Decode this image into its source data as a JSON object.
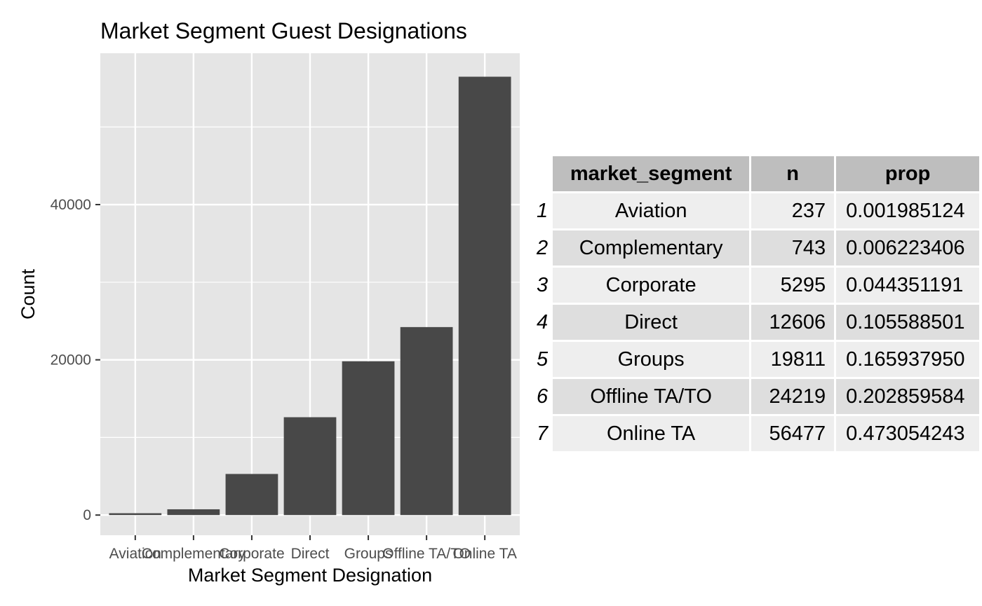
{
  "chart_data": {
    "type": "bar",
    "title": "Market Segment Guest Designations",
    "xlabel": "Market Segment Designation",
    "ylabel": "Count",
    "categories": [
      "Aviation",
      "Complementary",
      "Corporate",
      "Direct",
      "Groups",
      "Offline TA/TO",
      "Online TA"
    ],
    "values": [
      237,
      743,
      5295,
      12606,
      19811,
      24219,
      56477
    ],
    "ylim": [
      -2600,
      59500
    ],
    "yticks": [
      0,
      20000,
      40000
    ],
    "ytick_labels": [
      "0",
      "20000",
      "40000"
    ],
    "grid": true,
    "colors": {
      "bar": "#484848",
      "panel": "#e5e5e5",
      "grid": "#ffffff"
    }
  },
  "table": {
    "headers": [
      "market_segment",
      "n",
      "prop"
    ],
    "rows": [
      {
        "id": "1",
        "segment": "Aviation",
        "n": "237",
        "prop": "0.001985124"
      },
      {
        "id": "2",
        "segment": "Complementary",
        "n": "743",
        "prop": "0.006223406"
      },
      {
        "id": "3",
        "segment": "Corporate",
        "n": "5295",
        "prop": "0.044351191"
      },
      {
        "id": "4",
        "segment": "Direct",
        "n": "12606",
        "prop": "0.105588501"
      },
      {
        "id": "5",
        "segment": "Groups",
        "n": "19811",
        "prop": "0.165937950"
      },
      {
        "id": "6",
        "segment": "Offline TA/TO",
        "n": "24219",
        "prop": "0.202859584"
      },
      {
        "id": "7",
        "segment": "Online TA",
        "n": "56477",
        "prop": "0.473054243"
      }
    ]
  }
}
